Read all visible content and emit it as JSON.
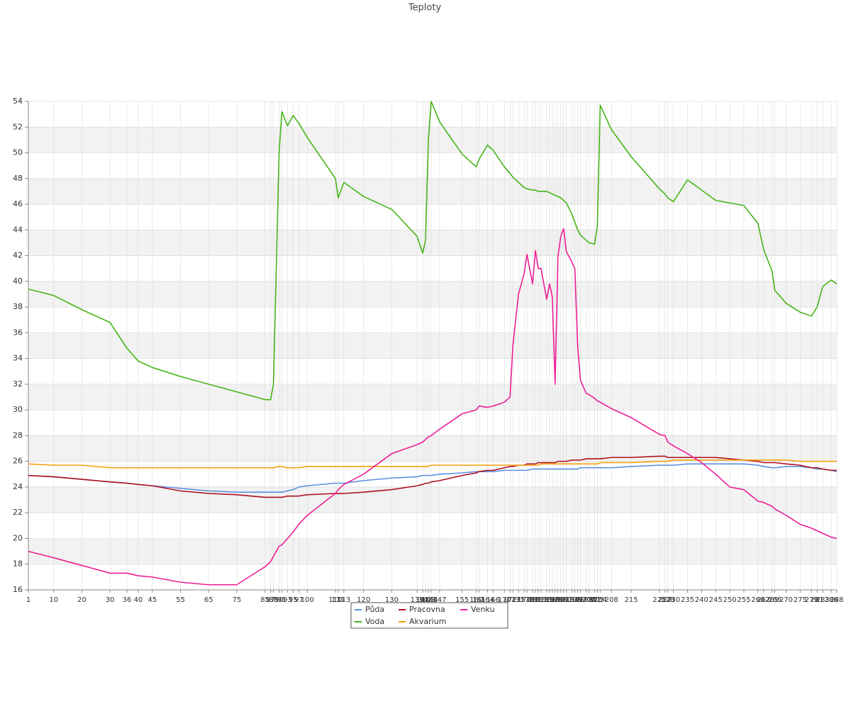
{
  "chart_data": {
    "type": "line",
    "title": "Teploty",
    "x": [
      1,
      10,
      20,
      30,
      36,
      40,
      45,
      55,
      65,
      75,
      85,
      87,
      88,
      90,
      91,
      93,
      95,
      97,
      100,
      110,
      111,
      113,
      120,
      130,
      139,
      141,
      142,
      143,
      144,
      147,
      155,
      160,
      161,
      164,
      166,
      170,
      172,
      173,
      175,
      177,
      178,
      180,
      181,
      182,
      183,
      185,
      186,
      187,
      188,
      189,
      190,
      191,
      192,
      194,
      195,
      196,
      197,
      199,
      200,
      202,
      203,
      204,
      208,
      215,
      225,
      227,
      228,
      230,
      235,
      240,
      245,
      250,
      255,
      260,
      262,
      265,
      266,
      270,
      275,
      279,
      281,
      283,
      286,
      288
    ],
    "xlim": [
      1,
      288
    ],
    "ylim": [
      16,
      54
    ],
    "yticks": [
      16,
      18,
      20,
      22,
      24,
      26,
      28,
      30,
      32,
      34,
      36,
      38,
      40,
      42,
      44,
      46,
      48,
      50,
      52,
      54
    ],
    "grid": true,
    "series": [
      {
        "name": "Půda",
        "color": "#5b8fe0",
        "values": [
          24.9,
          24.8,
          24.6,
          24.4,
          24.3,
          24.2,
          24.1,
          23.9,
          23.7,
          23.6,
          23.6,
          23.6,
          23.6,
          23.6,
          23.6,
          23.7,
          23.8,
          24.0,
          24.1,
          24.3,
          24.3,
          24.3,
          24.5,
          24.7,
          24.8,
          24.9,
          24.9,
          24.9,
          24.9,
          25.0,
          25.1,
          25.2,
          25.2,
          25.2,
          25.2,
          25.3,
          25.3,
          25.3,
          25.3,
          25.3,
          25.3,
          25.4,
          25.4,
          25.4,
          25.4,
          25.4,
          25.4,
          25.4,
          25.4,
          25.4,
          25.4,
          25.4,
          25.4,
          25.4,
          25.4,
          25.4,
          25.5,
          25.5,
          25.5,
          25.5,
          25.5,
          25.5,
          25.5,
          25.6,
          25.7,
          25.7,
          25.7,
          25.7,
          25.8,
          25.8,
          25.8,
          25.8,
          25.8,
          25.7,
          25.6,
          25.5,
          25.5,
          25.6,
          25.6,
          25.5,
          25.4,
          25.4,
          25.3,
          25.2
        ]
      },
      {
        "name": "Voda",
        "color": "#44b516",
        "values": [
          39.4,
          38.9,
          37.8,
          36.8,
          34.8,
          33.8,
          33.3,
          32.6,
          32.0,
          31.4,
          30.8,
          30.8,
          32.0,
          50.0,
          53.2,
          52.1,
          52.9,
          52.3,
          51.2,
          48.0,
          46.5,
          47.7,
          46.6,
          45.6,
          43.5,
          42.2,
          43.2,
          51.0,
          54.0,
          52.4,
          49.9,
          48.9,
          49.5,
          50.6,
          50.2,
          48.9,
          48.4,
          48.1,
          47.7,
          47.3,
          47.2,
          47.1,
          47.1,
          47.0,
          47.0,
          47.0,
          46.9,
          46.8,
          46.7,
          46.6,
          46.5,
          46.3,
          46.1,
          45.2,
          44.6,
          44.0,
          43.6,
          43.2,
          43.0,
          42.9,
          44.3,
          53.7,
          51.8,
          49.7,
          47.2,
          46.8,
          46.5,
          46.2,
          47.9,
          47.1,
          46.3,
          46.1,
          45.9,
          44.5,
          42.5,
          40.8,
          39.3,
          38.3,
          37.6,
          37.3,
          38.0,
          39.6,
          40.1,
          39.8
        ]
      },
      {
        "name": "Pracovna",
        "color": "#b0101e",
        "values": [
          24.9,
          24.8,
          24.6,
          24.4,
          24.3,
          24.2,
          24.1,
          23.7,
          23.5,
          23.4,
          23.2,
          23.2,
          23.2,
          23.2,
          23.2,
          23.3,
          23.3,
          23.3,
          23.4,
          23.5,
          23.5,
          23.5,
          23.6,
          23.8,
          24.1,
          24.2,
          24.3,
          24.3,
          24.4,
          24.5,
          24.9,
          25.1,
          25.2,
          25.3,
          25.3,
          25.5,
          25.6,
          25.6,
          25.7,
          25.7,
          25.8,
          25.8,
          25.8,
          25.9,
          25.9,
          25.9,
          25.9,
          25.9,
          25.9,
          26.0,
          26.0,
          26.0,
          26.0,
          26.1,
          26.1,
          26.1,
          26.1,
          26.2,
          26.2,
          26.2,
          26.2,
          26.2,
          26.3,
          26.3,
          26.4,
          26.4,
          26.3,
          26.3,
          26.3,
          26.3,
          26.3,
          26.2,
          26.1,
          26.0,
          25.9,
          25.9,
          25.9,
          25.8,
          25.7,
          25.5,
          25.5,
          25.4,
          25.3,
          25.3
        ]
      },
      {
        "name": "Akvarium",
        "color": "#f5a00a",
        "values": [
          25.8,
          25.7,
          25.7,
          25.5,
          25.5,
          25.5,
          25.5,
          25.5,
          25.5,
          25.5,
          25.5,
          25.5,
          25.5,
          25.6,
          25.6,
          25.5,
          25.5,
          25.5,
          25.6,
          25.6,
          25.6,
          25.6,
          25.6,
          25.6,
          25.6,
          25.6,
          25.6,
          25.6,
          25.7,
          25.7,
          25.7,
          25.7,
          25.7,
          25.7,
          25.7,
          25.7,
          25.7,
          25.7,
          25.7,
          25.7,
          25.7,
          25.7,
          25.7,
          25.7,
          25.8,
          25.8,
          25.8,
          25.8,
          25.8,
          25.8,
          25.8,
          25.8,
          25.8,
          25.8,
          25.8,
          25.8,
          25.8,
          25.8,
          25.8,
          25.8,
          25.8,
          25.9,
          25.9,
          25.9,
          26.0,
          26.0,
          26.0,
          26.1,
          26.1,
          26.1,
          26.1,
          26.1,
          26.1,
          26.1,
          26.1,
          26.1,
          26.1,
          26.1,
          26.0,
          26.0,
          26.0,
          26.0,
          26.0,
          26.0
        ]
      },
      {
        "name": "Venku",
        "color": "#ee1e96",
        "values": [
          19.0,
          18.5,
          17.9,
          17.3,
          17.3,
          17.1,
          17.0,
          16.6,
          16.4,
          16.4,
          17.8,
          18.2,
          18.6,
          19.4,
          19.5,
          20.0,
          20.5,
          21.1,
          21.8,
          23.5,
          23.8,
          24.2,
          25.0,
          26.6,
          27.3,
          27.5,
          27.7,
          27.9,
          28.0,
          28.5,
          29.7,
          30.0,
          30.3,
          30.2,
          30.3,
          30.6,
          31.0,
          35.0,
          39.0,
          40.6,
          42.1,
          39.8,
          42.4,
          41.0,
          41.0,
          38.6,
          39.8,
          38.8,
          32.0,
          41.9,
          43.5,
          44.1,
          42.3,
          41.5,
          41.0,
          35.0,
          32.3,
          31.3,
          31.2,
          30.9,
          30.7,
          30.6,
          30.1,
          29.4,
          28.1,
          28.0,
          27.5,
          27.2,
          26.6,
          25.9,
          25.0,
          24.0,
          23.8,
          22.9,
          22.8,
          22.5,
          22.3,
          21.8,
          21.1,
          20.8,
          20.6,
          20.4,
          20.1,
          20.0
        ]
      }
    ]
  }
}
